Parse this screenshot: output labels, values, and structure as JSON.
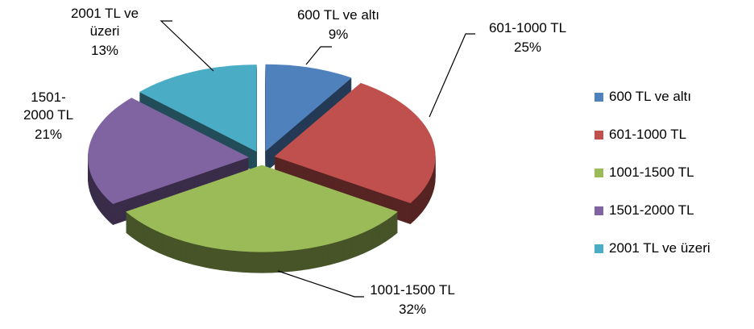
{
  "chart_data": {
    "type": "pie",
    "categories": [
      "600 TL ve altı",
      "601-1000 TL",
      "1001-1500 TL",
      "1501-2000 TL",
      "2001 TL ve üzeri"
    ],
    "values": [
      9,
      25,
      32,
      21,
      13
    ],
    "value_labels": [
      "9%",
      "25%",
      "32%",
      "21%",
      "13%"
    ],
    "colors": [
      "#4f81bd",
      "#c0504d",
      "#9bbb59",
      "#8064a2",
      "#4bacc6"
    ],
    "legend": "right"
  }
}
